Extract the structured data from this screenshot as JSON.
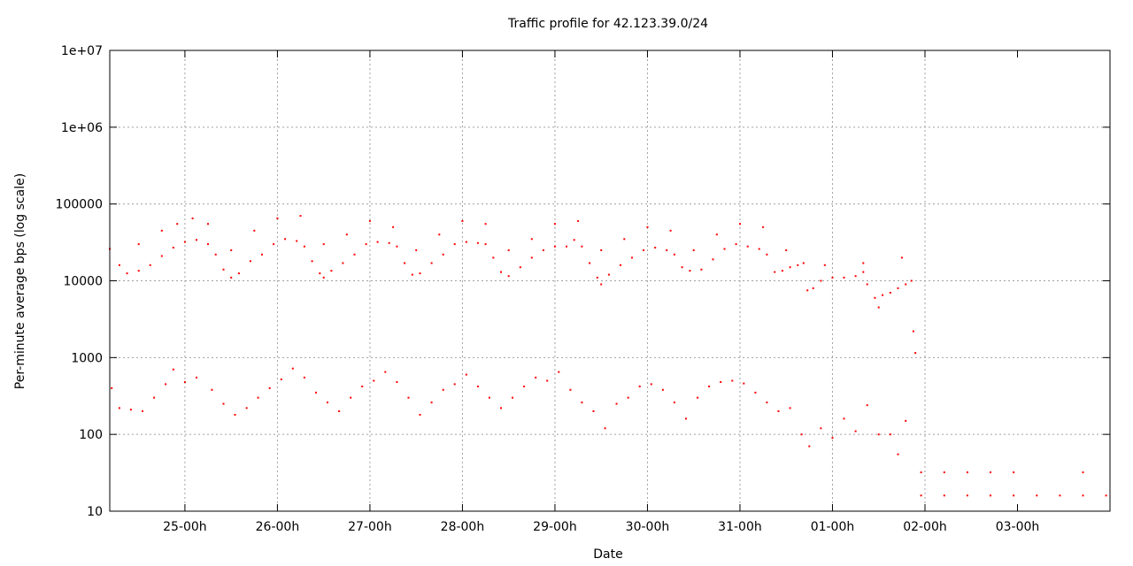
{
  "chart_data": {
    "type": "scatter",
    "title": "Traffic profile for 42.123.39.0/24",
    "xlabel": "Date",
    "ylabel": "Per-minute average bps (log scale)",
    "y_scale": "log",
    "ylim": [
      10,
      10000000
    ],
    "y_ticks": [
      "10",
      "100",
      "1000",
      "10000",
      "100000",
      "1e+06",
      "1e+07"
    ],
    "x_range_hours": [
      -19.5,
      240
    ],
    "x_ticks": [
      "25-00h",
      "26-00h",
      "27-00h",
      "28-00h",
      "29-00h",
      "30-00h",
      "31-00h",
      "01-00h",
      "02-00h",
      "03-00h"
    ],
    "grid": true,
    "point_color": "#ff0000",
    "series": [
      {
        "values_desc": "main per-minute traffic band",
        "points": [
          [
            -19.5,
            26000
          ],
          [
            -17,
            16000
          ],
          [
            -15,
            12500
          ],
          [
            -12,
            13500
          ],
          [
            -9,
            16000
          ],
          [
            -6,
            21000
          ],
          [
            -3,
            27000
          ],
          [
            0,
            32000
          ],
          [
            3,
            34000
          ],
          [
            6,
            30000
          ],
          [
            8,
            22000
          ],
          [
            10,
            14000
          ],
          [
            12,
            11000
          ],
          [
            14,
            12500
          ],
          [
            17,
            18000
          ],
          [
            20,
            22000
          ],
          [
            23,
            30000
          ],
          [
            26,
            35000
          ],
          [
            29,
            33000
          ],
          [
            31,
            28000
          ],
          [
            33,
            18000
          ],
          [
            35,
            12500
          ],
          [
            36,
            11000
          ],
          [
            38,
            13500
          ],
          [
            41,
            17000
          ],
          [
            44,
            22000
          ],
          [
            47,
            30000
          ],
          [
            50,
            32000
          ],
          [
            53,
            31000
          ],
          [
            55,
            28000
          ],
          [
            57,
            17000
          ],
          [
            59,
            12000
          ],
          [
            61,
            12500
          ],
          [
            64,
            17000
          ],
          [
            67,
            22000
          ],
          [
            70,
            30000
          ],
          [
            73,
            32000
          ],
          [
            76,
            31000
          ],
          [
            78,
            30000
          ],
          [
            80,
            20000
          ],
          [
            82,
            13000
          ],
          [
            84,
            11500
          ],
          [
            87,
            15000
          ],
          [
            90,
            20000
          ],
          [
            93,
            25000
          ],
          [
            96,
            28000
          ],
          [
            99,
            28000
          ],
          [
            101,
            34000
          ],
          [
            103,
            28000
          ],
          [
            105,
            17000
          ],
          [
            107,
            11000
          ],
          [
            108,
            9000
          ],
          [
            110,
            12000
          ],
          [
            113,
            16000
          ],
          [
            116,
            20000
          ],
          [
            119,
            25000
          ],
          [
            122,
            27000
          ],
          [
            125,
            25000
          ],
          [
            127,
            22000
          ],
          [
            129,
            15000
          ],
          [
            131,
            13500
          ],
          [
            134,
            14000
          ],
          [
            137,
            19000
          ],
          [
            140,
            26000
          ],
          [
            143,
            30000
          ],
          [
            146,
            28000
          ],
          [
            149,
            26000
          ],
          [
            151,
            22000
          ],
          [
            153,
            13000
          ],
          [
            155,
            13500
          ],
          [
            157,
            15000
          ],
          [
            159,
            16000
          ],
          [
            160.5,
            17000
          ],
          [
            161.5,
            7500
          ],
          [
            163,
            8000
          ],
          [
            165,
            10000
          ],
          [
            168,
            11000
          ],
          [
            171,
            11000
          ],
          [
            174,
            11500
          ],
          [
            176,
            13000
          ],
          [
            177,
            9000
          ],
          [
            179,
            6000
          ],
          [
            180,
            4500
          ],
          [
            181,
            6500
          ],
          [
            183,
            7000
          ],
          [
            185,
            8000
          ],
          [
            187,
            9000
          ],
          [
            188.5,
            10000
          ]
        ]
      },
      {
        "values_desc": "upper sparse points",
        "points": [
          [
            -12,
            30000
          ],
          [
            -6,
            45000
          ],
          [
            -2,
            55000
          ],
          [
            2,
            65000
          ],
          [
            6,
            55000
          ],
          [
            12,
            25000
          ],
          [
            18,
            45000
          ],
          [
            24,
            65000
          ],
          [
            30,
            70000
          ],
          [
            36,
            30000
          ],
          [
            42,
            40000
          ],
          [
            48,
            60000
          ],
          [
            54,
            50000
          ],
          [
            60,
            25000
          ],
          [
            66,
            40000
          ],
          [
            72,
            60000
          ],
          [
            78,
            55000
          ],
          [
            84,
            25000
          ],
          [
            90,
            35000
          ],
          [
            96,
            55000
          ],
          [
            102,
            60000
          ],
          [
            108,
            25000
          ],
          [
            114,
            35000
          ],
          [
            120,
            50000
          ],
          [
            126,
            45000
          ],
          [
            132,
            25000
          ],
          [
            138,
            40000
          ],
          [
            144,
            55000
          ],
          [
            150,
            50000
          ],
          [
            156,
            25000
          ],
          [
            166,
            16000
          ],
          [
            176,
            17000
          ],
          [
            186,
            20000
          ]
        ]
      },
      {
        "values_desc": "lower sparse points",
        "points": [
          [
            -19,
            400
          ],
          [
            -17,
            220
          ],
          [
            -14,
            210
          ],
          [
            -11,
            200
          ],
          [
            -8,
            300
          ],
          [
            -5,
            450
          ],
          [
            -3,
            700
          ],
          [
            0,
            480
          ],
          [
            3,
            550
          ],
          [
            7,
            380
          ],
          [
            10,
            250
          ],
          [
            13,
            180
          ],
          [
            16,
            220
          ],
          [
            19,
            300
          ],
          [
            22,
            400
          ],
          [
            25,
            520
          ],
          [
            28,
            720
          ],
          [
            31,
            550
          ],
          [
            34,
            350
          ],
          [
            37,
            260
          ],
          [
            40,
            200
          ],
          [
            43,
            300
          ],
          [
            46,
            420
          ],
          [
            49,
            500
          ],
          [
            52,
            650
          ],
          [
            55,
            480
          ],
          [
            58,
            300
          ],
          [
            61,
            180
          ],
          [
            64,
            260
          ],
          [
            67,
            380
          ],
          [
            70,
            450
          ],
          [
            73,
            600
          ],
          [
            76,
            420
          ],
          [
            79,
            300
          ],
          [
            82,
            220
          ],
          [
            85,
            300
          ],
          [
            88,
            420
          ],
          [
            91,
            550
          ],
          [
            94,
            500
          ],
          [
            97,
            650
          ],
          [
            100,
            380
          ],
          [
            103,
            260
          ],
          [
            106,
            200
          ],
          [
            109,
            120
          ],
          [
            112,
            250
          ],
          [
            115,
            300
          ],
          [
            118,
            420
          ],
          [
            121,
            450
          ],
          [
            124,
            380
          ],
          [
            127,
            260
          ],
          [
            130,
            160
          ],
          [
            133,
            300
          ],
          [
            136,
            420
          ],
          [
            139,
            480
          ],
          [
            142,
            500
          ],
          [
            145,
            460
          ],
          [
            148,
            350
          ],
          [
            151,
            260
          ],
          [
            154,
            200
          ],
          [
            157,
            220
          ],
          [
            160,
            100
          ],
          [
            162,
            70
          ],
          [
            165,
            120
          ],
          [
            168,
            90
          ],
          [
            171,
            160
          ],
          [
            174,
            110
          ],
          [
            177,
            240
          ],
          [
            180,
            100
          ],
          [
            183,
            100
          ],
          [
            185,
            55
          ],
          [
            187,
            150
          ],
          [
            189,
            2200
          ],
          [
            189.5,
            1150
          ]
        ]
      },
      {
        "values_desc": "low-level baseline after outage",
        "points": [
          [
            191,
            32
          ],
          [
            197,
            32
          ],
          [
            203,
            32
          ],
          [
            209,
            32
          ],
          [
            215,
            32
          ],
          [
            233,
            32
          ],
          [
            191,
            16
          ],
          [
            197,
            16
          ],
          [
            203,
            16
          ],
          [
            209,
            16
          ],
          [
            215,
            16
          ],
          [
            221,
            16
          ],
          [
            227,
            16
          ],
          [
            233,
            16
          ],
          [
            239,
            16
          ]
        ]
      }
    ]
  }
}
